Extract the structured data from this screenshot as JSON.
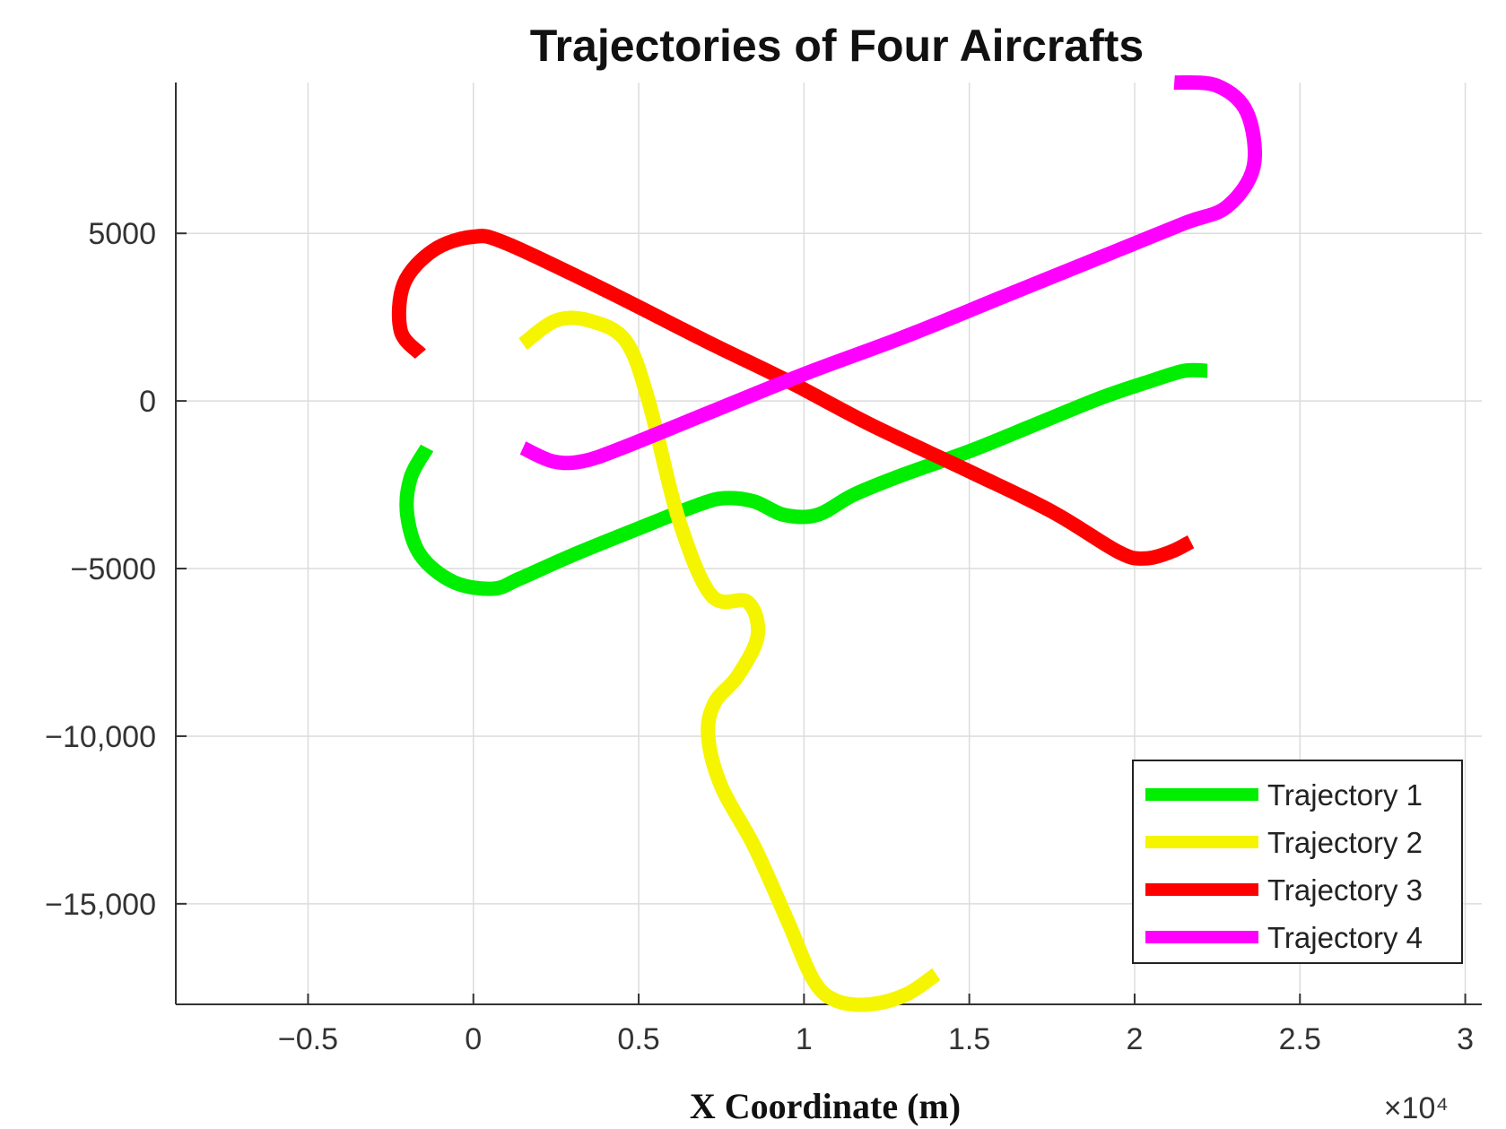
{
  "chart_data": {
    "type": "line",
    "title": "Trajectories of Four Aircrafts",
    "xlabel": "X Coordinate (m)",
    "ylabel": "",
    "x_exponent_label": "×10⁴",
    "xlim": [
      -9000,
      30500
    ],
    "ylim": [
      -18000,
      9500
    ],
    "xticks": [
      -5000,
      0,
      5000,
      10000,
      15000,
      20000,
      25000,
      30000
    ],
    "xtick_labels": [
      "−0.5",
      "0",
      "0.5",
      "1",
      "1.5",
      "2",
      "2.5",
      "3"
    ],
    "yticks": [
      5000,
      0,
      -5000,
      -10000,
      -15000
    ],
    "ytick_labels": [
      "5000",
      "0",
      "−5000",
      "−10,000",
      "−15,000"
    ],
    "grid": true,
    "legend_position": "bottom-right",
    "series": [
      {
        "name": "Trajectory 1",
        "color": "#00ee00",
        "points": [
          [
            -1400,
            -1400
          ],
          [
            -1900,
            -2300
          ],
          [
            -2000,
            -3400
          ],
          [
            -1600,
            -4600
          ],
          [
            -600,
            -5400
          ],
          [
            600,
            -5600
          ],
          [
            1400,
            -5300
          ],
          [
            3000,
            -4600
          ],
          [
            5000,
            -3800
          ],
          [
            6800,
            -3100
          ],
          [
            7600,
            -2900
          ],
          [
            8500,
            -3000
          ],
          [
            9400,
            -3400
          ],
          [
            10400,
            -3400
          ],
          [
            11500,
            -2800
          ],
          [
            13000,
            -2200
          ],
          [
            15000,
            -1500
          ],
          [
            17000,
            -700
          ],
          [
            19000,
            100
          ],
          [
            20500,
            600
          ],
          [
            21500,
            900
          ],
          [
            22200,
            900
          ]
        ]
      },
      {
        "name": "Trajectory 2",
        "color": "#f5f500",
        "points": [
          [
            1500,
            1700
          ],
          [
            2500,
            2400
          ],
          [
            3500,
            2400
          ],
          [
            4600,
            1800
          ],
          [
            5300,
            0
          ],
          [
            6200,
            -3500
          ],
          [
            7200,
            -5800
          ],
          [
            8300,
            -6000
          ],
          [
            8600,
            -7000
          ],
          [
            8000,
            -8200
          ],
          [
            7300,
            -9000
          ],
          [
            7100,
            -10000
          ],
          [
            7500,
            -11500
          ],
          [
            8500,
            -13300
          ],
          [
            9500,
            -15500
          ],
          [
            10300,
            -17300
          ],
          [
            11000,
            -17900
          ],
          [
            12000,
            -18000
          ],
          [
            13100,
            -17700
          ],
          [
            14000,
            -17100
          ]
        ]
      },
      {
        "name": "Trajectory 3",
        "color": "#ff0000",
        "points": [
          [
            -1600,
            1400
          ],
          [
            -2200,
            2100
          ],
          [
            -2100,
            3500
          ],
          [
            -1200,
            4500
          ],
          [
            0,
            4900
          ],
          [
            1000,
            4700
          ],
          [
            4000,
            3300
          ],
          [
            7000,
            1800
          ],
          [
            9500,
            600
          ],
          [
            12000,
            -700
          ],
          [
            15000,
            -2100
          ],
          [
            17500,
            -3300
          ],
          [
            19500,
            -4500
          ],
          [
            20300,
            -4700
          ],
          [
            21100,
            -4500
          ],
          [
            21700,
            -4200
          ]
        ]
      },
      {
        "name": "Trajectory 4",
        "color": "#ff00ff",
        "points": [
          [
            1500,
            -1400
          ],
          [
            2400,
            -1800
          ],
          [
            3300,
            -1800
          ],
          [
            4500,
            -1400
          ],
          [
            7000,
            -400
          ],
          [
            10000,
            800
          ],
          [
            13000,
            1900
          ],
          [
            16000,
            3100
          ],
          [
            19000,
            4300
          ],
          [
            21500,
            5300
          ],
          [
            22800,
            5800
          ],
          [
            23600,
            7000
          ],
          [
            23400,
            8600
          ],
          [
            22500,
            9400
          ],
          [
            21200,
            9500
          ]
        ]
      }
    ]
  }
}
